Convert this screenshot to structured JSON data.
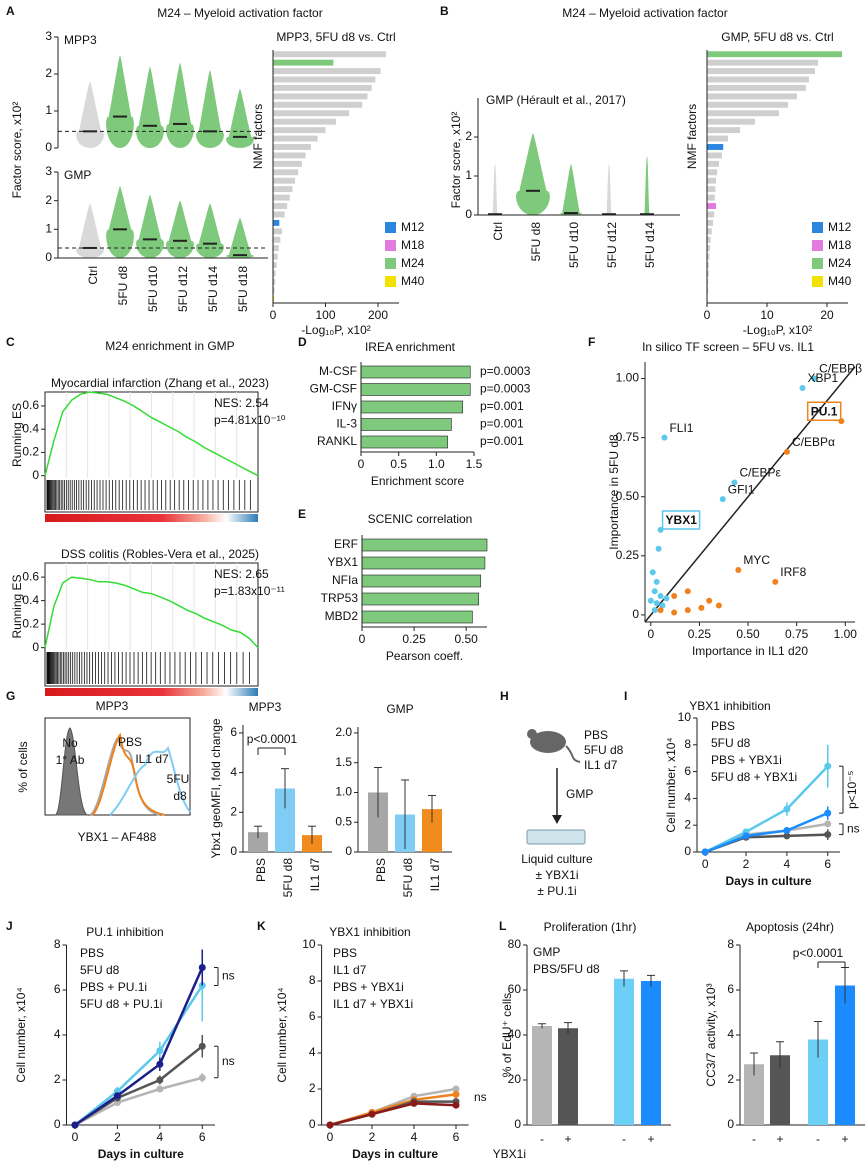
{
  "A": {
    "letter": "A",
    "title": "M24 – Myeloid activation factor",
    "ylabel": "Factor score, x10²",
    "categories": [
      "Ctrl",
      "5FU d8",
      "5FU d10",
      "5FU d12",
      "5FU d14",
      "5FU d18"
    ],
    "colors": [
      "#d9d9d9",
      "#7ec97b",
      "#7ec97b",
      "#7ec97b",
      "#7ec97b",
      "#7ec97b"
    ],
    "violins": [
      {
        "label": "MPP3",
        "ylim": [
          0,
          3
        ],
        "yticks": [
          0,
          1,
          2,
          3
        ],
        "baseline": 0.45,
        "median": [
          0.45,
          0.85,
          0.6,
          0.65,
          0.45,
          0.3
        ],
        "max": [
          1.8,
          2.5,
          2.2,
          2.3,
          2.1,
          1.6
        ]
      },
      {
        "label": "GMP",
        "ylim": [
          0,
          3
        ],
        "yticks": [
          0,
          1,
          2,
          3
        ],
        "baseline": 0.35,
        "median": [
          0.35,
          1.0,
          0.65,
          0.6,
          0.5,
          0.1
        ],
        "max": [
          1.9,
          2.5,
          2.2,
          2.0,
          1.9,
          1.4
        ]
      }
    ],
    "bars": {
      "title": "MPP3, 5FU d8 vs. Ctrl",
      "ylabel": "NMF factors",
      "xlabel": "-Log₁₀P, x10²",
      "xlim": [
        0,
        240
      ],
      "xticks": [
        0,
        100,
        200
      ],
      "values": [
        215,
        115,
        205,
        195,
        188,
        180,
        170,
        145,
        120,
        100,
        85,
        72,
        62,
        55,
        48,
        42,
        37,
        32,
        27,
        22,
        12,
        17,
        14,
        11,
        9,
        7,
        5,
        4,
        3,
        2
      ],
      "colors": [
        "#cfcfcf",
        "#7ec97b",
        "#cfcfcf",
        "#cfcfcf",
        "#cfcfcf",
        "#cfcfcf",
        "#cfcfcf",
        "#cfcfcf",
        "#cfcfcf",
        "#cfcfcf",
        "#cfcfcf",
        "#cfcfcf",
        "#cfcfcf",
        "#cfcfcf",
        "#cfcfcf",
        "#cfcfcf",
        "#cfcfcf",
        "#cfcfcf",
        "#cfcfcf",
        "#cfcfcf",
        "#2b86e0",
        "#cfcfcf",
        "#cfcfcf",
        "#cfcfcf",
        "#cfcfcf",
        "#cfcfcf",
        "#cfcfcf",
        "#cfcfcf",
        "#cfcfcf",
        "#f2e200"
      ],
      "legend": [
        {
          "name": "M12",
          "color": "#2b86e0"
        },
        {
          "name": "M18",
          "color": "#e27be0"
        },
        {
          "name": "M24",
          "color": "#7ec97b"
        },
        {
          "name": "M40",
          "color": "#f2e200"
        }
      ]
    }
  },
  "B": {
    "letter": "B",
    "title": "M24 – Myeloid activation factor",
    "ylabel": "Factor score, x10²",
    "categories": [
      "Ctrl",
      "5FU d8",
      "5FU d10",
      "5FU d12",
      "5FU d14"
    ],
    "colors": [
      "#d9d9d9",
      "#7ec97b",
      "#7ec97b",
      "#d9d9d9",
      "#7ec97b"
    ],
    "violin": {
      "label": "GMP (Hérault et al., 2017)",
      "ylim": [
        0,
        3
      ],
      "yticks": [
        0,
        1,
        2
      ],
      "baseline": 0,
      "median": [
        0.02,
        0.62,
        0.05,
        0.02,
        0.02
      ],
      "max": [
        1.3,
        2.1,
        1.3,
        1.3,
        1.5
      ]
    },
    "bars": {
      "title": "GMP, 5FU d8 vs. Ctrl",
      "ylabel": "NMF factors",
      "xlabel": "-Log₁₀P, x10²",
      "xlim": [
        0,
        23.5
      ],
      "xticks": [
        0,
        10,
        20
      ],
      "values": [
        22.5,
        18.5,
        18,
        17,
        16.5,
        15,
        13.5,
        12,
        8,
        5.5,
        3.5,
        2.7,
        2.5,
        2,
        1.7,
        1.5,
        1.4,
        1.3,
        1.5,
        1.2,
        1,
        0.8,
        0.6,
        0.5,
        0.4,
        0.3,
        0.3,
        0.2,
        0.2,
        0.1
      ],
      "colors": [
        "#7ec97b",
        "#cfcfcf",
        "#cfcfcf",
        "#cfcfcf",
        "#cfcfcf",
        "#cfcfcf",
        "#cfcfcf",
        "#cfcfcf",
        "#cfcfcf",
        "#cfcfcf",
        "#cfcfcf",
        "#2b86e0",
        "#cfcfcf",
        "#cfcfcf",
        "#cfcfcf",
        "#cfcfcf",
        "#cfcfcf",
        "#cfcfcf",
        "#e27be0",
        "#cfcfcf",
        "#cfcfcf",
        "#cfcfcf",
        "#cfcfcf",
        "#cfcfcf",
        "#cfcfcf",
        "#cfcfcf",
        "#cfcfcf",
        "#cfcfcf",
        "#cfcfcf",
        "#cfcfcf"
      ],
      "legend": [
        {
          "name": "M12",
          "color": "#2b86e0"
        },
        {
          "name": "M18",
          "color": "#e27be0"
        },
        {
          "name": "M24",
          "color": "#7ec97b"
        },
        {
          "name": "M40",
          "color": "#f2e200"
        }
      ]
    }
  },
  "C": {
    "letter": "C",
    "title": "M24 enrichment in GMP",
    "ylabel": "Running ES",
    "ylim": [
      -0.02,
      0.72
    ],
    "yticks": [
      0,
      0.2,
      0.4,
      0.6
    ],
    "color": "#33dd33",
    "plots": [
      {
        "subtitle": "Myocardial infarction (Zhang et al., 2023)",
        "nes": "NES: 2.54",
        "p": "p=4.81x10⁻¹⁰",
        "es": [
          0,
          0.3,
          0.55,
          0.65,
          0.7,
          0.72,
          0.71,
          0.7,
          0.67,
          0.64,
          0.6,
          0.55,
          0.5,
          0.46,
          0.42,
          0.38,
          0.33,
          0.29,
          0.24,
          0.2,
          0.16,
          0.12,
          0.08,
          0.04,
          0
        ]
      },
      {
        "subtitle": "DSS colitis (Robles-Vera et al., 2025)",
        "nes": "NES: 2.65",
        "p": "p=1.83x10⁻¹¹",
        "es": [
          0,
          0.35,
          0.55,
          0.6,
          0.59,
          0.58,
          0.56,
          0.56,
          0.55,
          0.53,
          0.5,
          0.47,
          0.46,
          0.43,
          0.4,
          0.36,
          0.32,
          0.29,
          0.25,
          0.22,
          0.19,
          0.15,
          0.13,
          0.08,
          0
        ]
      }
    ]
  },
  "D": {
    "letter": "D",
    "title": "IREA enrichment",
    "xlabel": "Enrichment score",
    "color": "#7ec97b",
    "categories": [
      "M-CSF",
      "GM-CSF",
      "IFNγ",
      "IL-3",
      "RANKL"
    ],
    "values": [
      1.45,
      1.45,
      1.35,
      1.2,
      1.15
    ],
    "annotations": [
      "p=0.0003",
      "p=0.0003",
      "p=0.001",
      "p=0.001",
      "p=0.001"
    ],
    "xlim": [
      0,
      1.5
    ],
    "xticks": [
      0,
      0.5,
      {
        "value": 1,
        "label": "1.0"
      },
      1.5
    ]
  },
  "E": {
    "letter": "E",
    "title": "SCENIC correlation",
    "xlabel": "Pearson coeff.",
    "color": "#7ec97b",
    "categories": [
      "ERF",
      "YBX1",
      "NFIa",
      "TRP53",
      "MBD2"
    ],
    "values": [
      0.6,
      0.59,
      0.57,
      0.56,
      0.53
    ],
    "xlim": [
      0,
      0.6
    ],
    "xticks": [
      0,
      0.25,
      {
        "value": 0.5,
        "label": "0.50"
      }
    ]
  },
  "F": {
    "letter": "F",
    "title": "In silico TF screen – 5FU vs. IL1",
    "xlabel": "Importance in IL1 d20",
    "ylabel": "Importance in 5FU d8",
    "xlim": [
      -0.03,
      1.05
    ],
    "ylim": [
      -0.03,
      1.07
    ],
    "xticks": [
      0,
      0.25,
      {
        "value": 0.5,
        "label": "0.50"
      },
      0.75,
      {
        "value": 1,
        "label": "1.00"
      }
    ],
    "yticks": [
      0,
      0.25,
      {
        "value": 0.5,
        "label": "0.50"
      },
      0.75,
      {
        "value": 1,
        "label": "1.00"
      }
    ],
    "series": [
      {
        "color": "#5bc8ec",
        "points": [
          {
            "x": 0.07,
            "y": 0.75,
            "label": "FLI1"
          },
          {
            "x": 0.84,
            "y": 1.0,
            "label": "C/EBPβ"
          },
          {
            "x": 0.78,
            "y": 0.96,
            "label": "XBP1"
          },
          {
            "x": 0.43,
            "y": 0.56,
            "label": "C/EBPε"
          },
          {
            "x": 0.37,
            "y": 0.49,
            "label": "GFI1"
          },
          {
            "x": 0.05,
            "y": 0.36,
            "label": "YBX1",
            "boxed": true
          },
          {
            "x": 0.04,
            "y": 0.28
          },
          {
            "x": 0.01,
            "y": 0.18
          },
          {
            "x": 0.03,
            "y": 0.14
          },
          {
            "x": 0.02,
            "y": 0.1
          },
          {
            "x": 0.05,
            "y": 0.08
          },
          {
            "x": 0.0,
            "y": 0.06
          },
          {
            "x": 0.03,
            "y": 0.05
          },
          {
            "x": 0.06,
            "y": 0.04
          },
          {
            "x": 0.08,
            "y": 0.07
          },
          {
            "x": 0.02,
            "y": 0.02
          }
        ]
      },
      {
        "color": "#f0821e",
        "points": [
          {
            "x": 0.98,
            "y": 0.82,
            "label": "PU.1",
            "boxed": true
          },
          {
            "x": 0.7,
            "y": 0.69,
            "label": "C/EBPα"
          },
          {
            "x": 0.45,
            "y": 0.19,
            "label": "MYC"
          },
          {
            "x": 0.64,
            "y": 0.14,
            "label": "IRF8"
          },
          {
            "x": 0.12,
            "y": 0.08
          },
          {
            "x": 0.19,
            "y": 0.1
          },
          {
            "x": 0.26,
            "y": 0.03
          },
          {
            "x": 0.3,
            "y": 0.06
          },
          {
            "x": 0.19,
            "y": 0.02
          },
          {
            "x": 0.35,
            "y": 0.04
          },
          {
            "x": 0.05,
            "y": 0.02
          },
          {
            "x": 0.12,
            "y": 0.01
          }
        ]
      }
    ]
  },
  "G": {
    "letter": "G",
    "histogram": {
      "title": "MPP3",
      "xlabel": "YBX1 – AF488",
      "ylabel": "% of cells",
      "noab": [
        "No",
        "1° Ab"
      ],
      "pbs": "PBS",
      "il1": "IL1 d7",
      "fu": [
        "5FU",
        "d8"
      ]
    },
    "bars": [
      {
        "title": "MPP3",
        "ylabel": "Ybx1 geoMFI, fold change",
        "categories": [
          "PBS",
          "5FU d8",
          "IL1 d7"
        ],
        "values": [
          1.0,
          3.2,
          0.85
        ],
        "errors": [
          0.3,
          1.0,
          0.45
        ],
        "colors": [
          "#a6a6a6",
          "#7fcdf5",
          "#f28b1e"
        ],
        "ylim": [
          0,
          6.4
        ],
        "yticks": [
          0,
          2,
          4,
          6
        ],
        "annotation": "p<0.0001"
      },
      {
        "title": "GMP",
        "categories": [
          "PBS",
          "5FU d8",
          "IL1 d7"
        ],
        "values": [
          1.0,
          0.63,
          0.72
        ],
        "errors": [
          0.42,
          0.58,
          0.23
        ],
        "colors": [
          "#a6a6a6",
          "#7fcdf5",
          "#f28b1e"
        ],
        "ylim": [
          0,
          2.1
        ],
        "yticks": [
          0,
          0.5,
          {
            "value": 1,
            "label": "1.0"
          },
          1.5,
          {
            "value": 2,
            "label": "2.0"
          }
        ]
      }
    ]
  },
  "H": {
    "letter": "H",
    "groups": [
      "PBS",
      "5FU d8",
      "IL1 d7"
    ],
    "colors": [
      "#b0b0b0",
      "#5bc8ec",
      "#f0821e"
    ],
    "arrow_label": "GMP",
    "culture": "Liquid culture",
    "treatments": [
      "± YBX1i",
      "± PU.1i"
    ]
  },
  "I": {
    "letter": "I",
    "title": "YBX1 inhibition",
    "ylabel": "Cell number, x10⁴",
    "xlabel": "Days in culture",
    "x": [
      0,
      2,
      4,
      6
    ],
    "xlim": [
      -0.4,
      6.6
    ],
    "xticks": [
      0,
      2,
      4,
      6
    ],
    "ylim": [
      0,
      10
    ],
    "yticks": [
      0,
      2,
      4,
      6,
      8,
      10
    ],
    "series": [
      {
        "name": "PBS",
        "color": "#b5b5b5",
        "values": [
          0,
          1.3,
          1.6,
          2.1
        ],
        "errors": [
          0,
          0.1,
          0.15,
          0.2
        ]
      },
      {
        "name": "5FU d8",
        "color": "#5bc8ec",
        "values": [
          0,
          1.5,
          3.2,
          6.4
        ],
        "errors": [
          0,
          0.2,
          0.5,
          1.6
        ]
      },
      {
        "name": "PBS + YBX1i",
        "color": "#555555",
        "values": [
          0,
          1.1,
          1.2,
          1.3
        ],
        "errors": [
          0,
          0.1,
          0.1,
          0.4
        ]
      },
      {
        "name": "5FU d8 + YBX1i",
        "color": "#1a8cff",
        "values": [
          0,
          1.2,
          1.6,
          2.9
        ],
        "errors": [
          0,
          0.1,
          0.2,
          0.5
        ]
      }
    ],
    "annotations": [
      "p<10⁻⁵",
      "ns"
    ]
  },
  "J": {
    "letter": "J",
    "title": "PU.1 inhibition",
    "ylabel": "Cell number, x10⁴",
    "xlabel": "Days in culture",
    "x": [
      0,
      2,
      4,
      6
    ],
    "xlim": [
      -0.4,
      6.6
    ],
    "xticks": [
      0,
      2,
      4,
      6
    ],
    "ylim": [
      0,
      8
    ],
    "yticks": [
      0,
      2,
      4,
      6,
      8
    ],
    "series": [
      {
        "name": "PBS",
        "color": "#b5b5b5",
        "values": [
          0,
          1.0,
          1.6,
          2.1
        ],
        "errors": [
          0,
          0.1,
          0.1,
          0.2
        ]
      },
      {
        "name": "5FU d8",
        "color": "#5bc8ec",
        "values": [
          0,
          1.5,
          3.3,
          6.2
        ],
        "errors": [
          0,
          0.2,
          0.4,
          1.6
        ]
      },
      {
        "name": "PBS + PU.1i",
        "color": "#555555",
        "values": [
          0,
          1.2,
          2.0,
          3.5
        ],
        "errors": [
          0,
          0.1,
          0.2,
          0.5
        ]
      },
      {
        "name": "5FU d8 + PU.1i",
        "color": "#1b1f8a",
        "values": [
          0,
          1.3,
          2.7,
          7.0
        ],
        "errors": [
          0,
          0.1,
          0.3,
          0.8
        ]
      }
    ],
    "annotations": [
      "ns",
      "ns"
    ]
  },
  "K": {
    "letter": "K",
    "title": "YBX1 inhibition",
    "ylabel": "Cell number, x10⁴",
    "xlabel": "Days in culture",
    "x": [
      0,
      2,
      4,
      6
    ],
    "xlim": [
      -0.4,
      6.6
    ],
    "xticks": [
      0,
      2,
      4,
      6
    ],
    "ylim": [
      0,
      10
    ],
    "yticks": [
      0,
      2,
      4,
      6,
      8,
      10
    ],
    "series": [
      {
        "name": "PBS",
        "color": "#b5b5b5",
        "values": [
          0,
          0.7,
          1.6,
          2.0
        ],
        "errors": [
          0,
          0.1,
          0.1,
          0.2
        ]
      },
      {
        "name": "IL1 d7",
        "color": "#f0821e",
        "values": [
          0,
          0.7,
          1.4,
          1.7
        ],
        "errors": [
          0,
          0.1,
          0.1,
          0.2
        ]
      },
      {
        "name": "PBS + YBX1i",
        "color": "#555555",
        "values": [
          0,
          0.6,
          1.3,
          1.3
        ],
        "errors": [
          0,
          0.1,
          0.1,
          0.1
        ]
      },
      {
        "name": "IL1 d7 + YBX1i",
        "color": "#8b1a1a",
        "values": [
          0,
          0.6,
          1.2,
          1.1
        ],
        "errors": [
          0,
          0.1,
          0.1,
          0.1
        ]
      }
    ],
    "annotations": [
      "ns"
    ]
  },
  "L": {
    "letter": "L",
    "xrow_label": "YBX1i",
    "bars": [
      {
        "title": "Proliferation (1hr)",
        "ylabel": "% of EdU⁺ cells",
        "notes": [
          "GMP",
          "PBS/5FU d8"
        ],
        "categories": [
          "-",
          "+",
          "-",
          "+"
        ],
        "values": [
          44,
          43,
          65,
          64
        ],
        "errors": [
          1,
          2.5,
          3.5,
          2.5
        ],
        "colors": [
          "#b5b5b5",
          "#555555",
          "#6ccff6",
          "#1a8cff"
        ],
        "ylim": [
          0,
          80
        ],
        "yticks": [
          0,
          20,
          40,
          60,
          80
        ]
      },
      {
        "title": "Apoptosis (24hr)",
        "ylabel": "CC3/7 activity, x10³",
        "categories": [
          "-",
          "+",
          "-",
          "+"
        ],
        "values": [
          2.7,
          3.1,
          3.8,
          6.2
        ],
        "errors": [
          0.5,
          0.6,
          0.8,
          0.8
        ],
        "colors": [
          "#b5b5b5",
          "#555555",
          "#6ccff6",
          "#1a8cff"
        ],
        "ylim": [
          0,
          8
        ],
        "yticks": [
          0,
          2,
          4,
          6,
          8
        ],
        "annotation": "p<0.0001"
      }
    ]
  }
}
